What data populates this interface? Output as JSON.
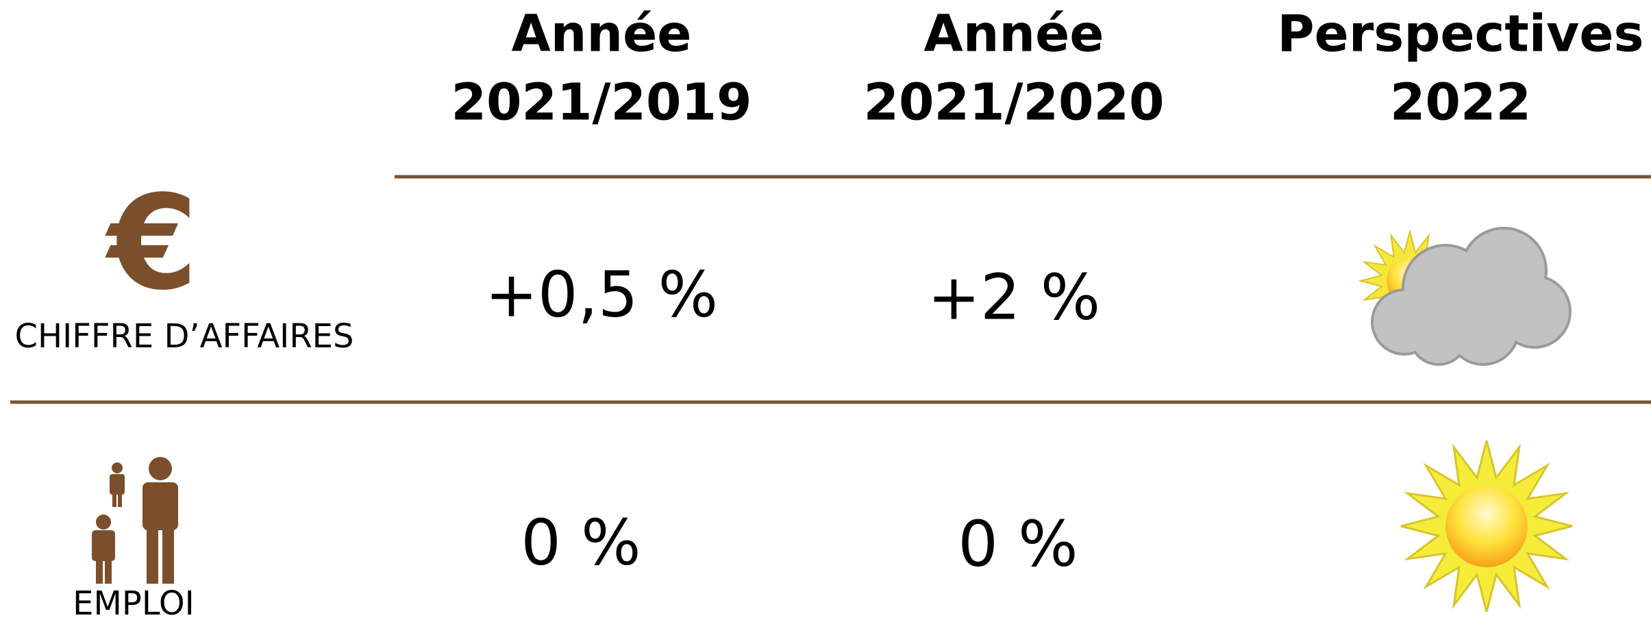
{
  "table": {
    "header": [
      [
        "Année",
        "2021/2019"
      ],
      [
        "Année",
        "2021/2020"
      ],
      [
        "Perspectives",
        "2022"
      ]
    ],
    "rows": [
      {
        "icon": "€",
        "label": "CHIFFRE D’AFFAIRES",
        "cells": [
          "+0,5 %",
          "+2 %"
        ]
      },
      {
        "label": "EMPLOI",
        "cells": [
          "0 %",
          "0 %"
        ]
      }
    ]
  }
}
